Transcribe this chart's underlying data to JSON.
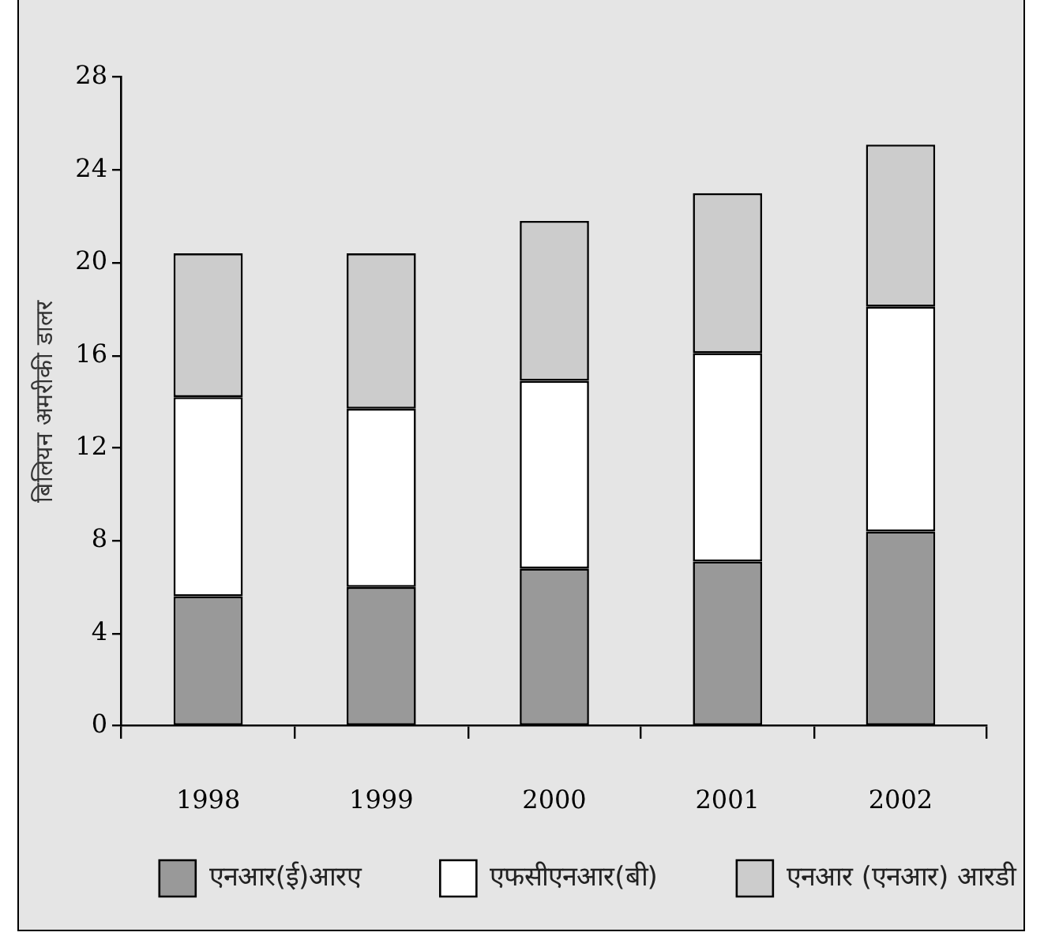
{
  "chart_data": {
    "type": "bar",
    "ylabel": "बिलियन अमरीकी डालर",
    "categories": [
      "1998",
      "1999",
      "2000",
      "2001",
      "2002"
    ],
    "series": [
      {
        "name": "एनआर(ई)आरए",
        "color": "#999999",
        "values": [
          5.6,
          6.0,
          6.8,
          7.1,
          8.4
        ]
      },
      {
        "name": "एफसीएनआर(बी)",
        "color": "#ffffff",
        "values": [
          8.6,
          7.7,
          8.1,
          9.0,
          9.7
        ]
      },
      {
        "name": "एनआर (एनआर) आरडी",
        "color": "#cccccc",
        "values": [
          6.2,
          6.7,
          6.9,
          6.9,
          7.0
        ]
      }
    ],
    "stacked": true,
    "ylim": [
      0,
      28
    ],
    "yticks": [
      0,
      4,
      8,
      12,
      16,
      20,
      24,
      28
    ],
    "legend": "bottom"
  }
}
